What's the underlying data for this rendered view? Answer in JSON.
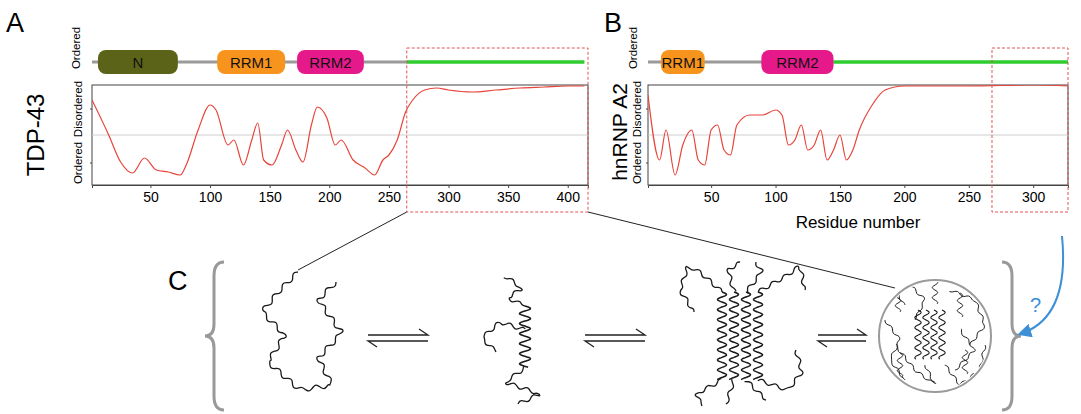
{
  "chart_data": [
    {
      "type": "line",
      "panel_label": "A",
      "title": "TDP-43",
      "track_label": "Ordered",
      "domains": [
        {
          "label": "N",
          "start": 6,
          "end": 73,
          "color": "#5b6318"
        },
        {
          "label": "RRM1",
          "start": 106,
          "end": 163,
          "color": "#f7941d"
        },
        {
          "label": "RRM2",
          "start": 173,
          "end": 229,
          "color": "#e6198a"
        }
      ],
      "disordered_region": {
        "start": 265,
        "end": 414,
        "color": "#2ecc2e"
      },
      "highlight": {
        "start": 265,
        "end": 417,
        "color": "#e05555"
      },
      "x": [
        1,
        15,
        25,
        35,
        45,
        55,
        65,
        75,
        80,
        90,
        100,
        105,
        115,
        120,
        128,
        135,
        140,
        145,
        152,
        160,
        165,
        172,
        178,
        185,
        190,
        198,
        205,
        210,
        220,
        230,
        238,
        245,
        250,
        257,
        264,
        270,
        280,
        290,
        300,
        320,
        340,
        360,
        380,
        400,
        414
      ],
      "values": [
        0.85,
        0.5,
        0.23,
        0.12,
        0.27,
        0.15,
        0.13,
        0.1,
        0.2,
        0.55,
        0.8,
        0.75,
        0.4,
        0.45,
        0.2,
        0.45,
        0.62,
        0.25,
        0.2,
        0.4,
        0.55,
        0.35,
        0.23,
        0.6,
        0.78,
        0.67,
        0.4,
        0.45,
        0.25,
        0.17,
        0.1,
        0.25,
        0.3,
        0.45,
        0.73,
        0.85,
        0.95,
        0.97,
        0.95,
        0.93,
        0.95,
        0.97,
        0.98,
        0.99,
        0.99
      ],
      "color": "#e8443a",
      "reference_line": 0.5,
      "xlim": [
        1,
        417
      ],
      "xticks": [
        50,
        100,
        150,
        200,
        250,
        300,
        350,
        400
      ],
      "ylim": [
        0,
        1
      ],
      "yticks": [
        {
          "value": 0.22,
          "label": "Ordered"
        },
        {
          "value": 0.76,
          "label": "Disordered"
        }
      ]
    },
    {
      "type": "line",
      "panel_label": "B",
      "title": "hnRNP A2",
      "track_label": "Ordered",
      "domains": [
        {
          "label": "RRM1",
          "start": 11,
          "end": 45,
          "color": "#f7941d"
        },
        {
          "label": "RRM2",
          "start": 89,
          "end": 145,
          "color": "#e6198a"
        }
      ],
      "disordered_region": {
        "start": 145,
        "end": 327,
        "color": "#2ecc2e"
      },
      "highlight": {
        "start": 268,
        "end": 327,
        "color": "#e05555"
      },
      "x": [
        1,
        10,
        15,
        22,
        28,
        35,
        40,
        45,
        50,
        55,
        60,
        65,
        70,
        80,
        90,
        100,
        105,
        110,
        115,
        120,
        125,
        130,
        135,
        140,
        145,
        150,
        155,
        160,
        165,
        175,
        185,
        200,
        250,
        300,
        327
      ],
      "values": [
        0.9,
        0.25,
        0.55,
        0.1,
        0.4,
        0.55,
        0.25,
        0.2,
        0.55,
        0.6,
        0.35,
        0.3,
        0.6,
        0.7,
        0.7,
        0.75,
        0.7,
        0.4,
        0.45,
        0.6,
        0.35,
        0.4,
        0.55,
        0.25,
        0.35,
        0.5,
        0.25,
        0.35,
        0.55,
        0.8,
        0.95,
        0.99,
        0.99,
        1,
        0.99
      ],
      "color": "#e8443a",
      "reference_line": 0.5,
      "x_label": "Residue number",
      "xlim": [
        1,
        327
      ],
      "xticks": [
        50,
        100,
        150,
        200,
        250,
        300
      ],
      "ylim": [
        0,
        1
      ],
      "yticks": [
        {
          "value": 0.22,
          "label": "Ordered"
        },
        {
          "value": 0.76,
          "label": "Disordered"
        }
      ]
    }
  ],
  "panel_c": {
    "panel_label": "C",
    "annotation": "?",
    "annotation_color": "#3d8fd6"
  }
}
